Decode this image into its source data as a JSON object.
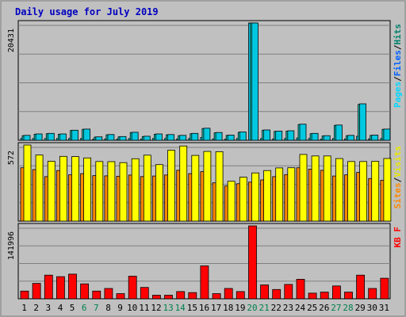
{
  "chart_data": {
    "type": "bar",
    "title": "Daily usage for July 2019",
    "categories": [
      "1",
      "2",
      "3",
      "4",
      "5",
      "6",
      "7",
      "8",
      "9",
      "10",
      "11",
      "12",
      "13",
      "14",
      "15",
      "16",
      "17",
      "18",
      "19",
      "20",
      "21",
      "22",
      "23",
      "24",
      "25",
      "26",
      "27",
      "28",
      "29",
      "30",
      "31"
    ],
    "weekend_days": [
      "6",
      "7",
      "13",
      "14",
      "20",
      "21",
      "27",
      "28"
    ],
    "panels": [
      {
        "id": "pages-files-hits",
        "axis_max": 20431,
        "axis_max_label": "20431",
        "legend": [
          "Pages",
          "/",
          "Files",
          "/",
          "Hits"
        ],
        "series": [
          {
            "name": "Pages",
            "color": "#00d8ff",
            "values": [
              300,
              300,
              300,
              300,
              300,
              300,
              200,
              250,
              200,
              300,
              200,
              300,
              300,
              250,
              300,
              500,
              250,
              200,
              300,
              20431,
              300,
              250,
              300,
              400,
              300,
              200,
              300,
              250,
              700,
              250,
              300
            ]
          },
          {
            "name": "Files",
            "color": "#10ccc4",
            "values": [
              800,
              1050,
              1150,
              1050,
              1700,
              1900,
              550,
              950,
              600,
              1350,
              650,
              1050,
              950,
              800,
              1150,
              2050,
              1300,
              850,
              1400,
              20431,
              1750,
              1550,
              1600,
              2750,
              1150,
              750,
              2600,
              800,
              6250,
              850,
              1900
            ]
          },
          {
            "name": "Hits",
            "color": "#00c8e0",
            "values": [
              850,
              1100,
              1200,
              1100,
              1750,
              1950,
              600,
              1000,
              650,
              1400,
              700,
              1100,
              1000,
              850,
              1200,
              2100,
              1350,
              900,
              1450,
              20431,
              1800,
              1600,
              1650,
              2800,
              1200,
              800,
              2650,
              850,
              6350,
              900,
              1950
            ]
          }
        ]
      },
      {
        "id": "sites-visits",
        "axis_max": 572,
        "axis_max_label": "572",
        "legend": [
          "Sites",
          "/",
          "Visits"
        ],
        "series": [
          {
            "name": "Sites",
            "color": "#ff8800",
            "values": [
              401,
              387,
              334,
              380,
              348,
              357,
              342,
              340,
              337,
              346,
              335,
              339,
              347,
              382,
              357,
              372,
              288,
              264,
              281,
              293,
              310,
              334,
              350,
              401,
              390,
              382,
              339,
              348,
              366,
              320,
              306
            ]
          },
          {
            "name": "Visits",
            "color": "#ffff00",
            "values": [
              572,
              497,
              450,
              487,
              485,
              475,
              448,
              447,
              440,
              469,
              496,
              425,
              533,
              565,
              494,
              524,
              522,
              300,
              330,
              362,
              380,
              400,
              401,
              501,
              490,
              490,
              470,
              448,
              448,
              450,
              471
            ]
          }
        ]
      },
      {
        "id": "kbytes",
        "axis_max": 141996,
        "axis_max_label": "141996",
        "legend": [
          "KB",
          "F"
        ],
        "series": [
          {
            "name": "KB F",
            "color": "#ff0000",
            "values": [
              15000,
              30000,
              46000,
              43000,
              48000,
              29000,
              15000,
              20000,
              10000,
              44000,
              22000,
              7000,
              7000,
              14000,
              12000,
              64000,
              10000,
              20000,
              14000,
              141996,
              27000,
              18000,
              28000,
              38000,
              11000,
              13000,
              25000,
              13000,
              46000,
              20000,
              40000
            ]
          }
        ]
      }
    ],
    "colors": {
      "background": "#ffffff",
      "frame": "#c0c0c0",
      "plot_area": "#c0c0c0",
      "title": "#0000c0",
      "axis_text": "#000000",
      "weekend_text": "#00804f",
      "pages": "#00d8ff",
      "files": "#0060ff",
      "hits": "#00806a",
      "sites": "#ff8800",
      "visits": "#e8e800",
      "kbytes": "#ff0000"
    }
  }
}
